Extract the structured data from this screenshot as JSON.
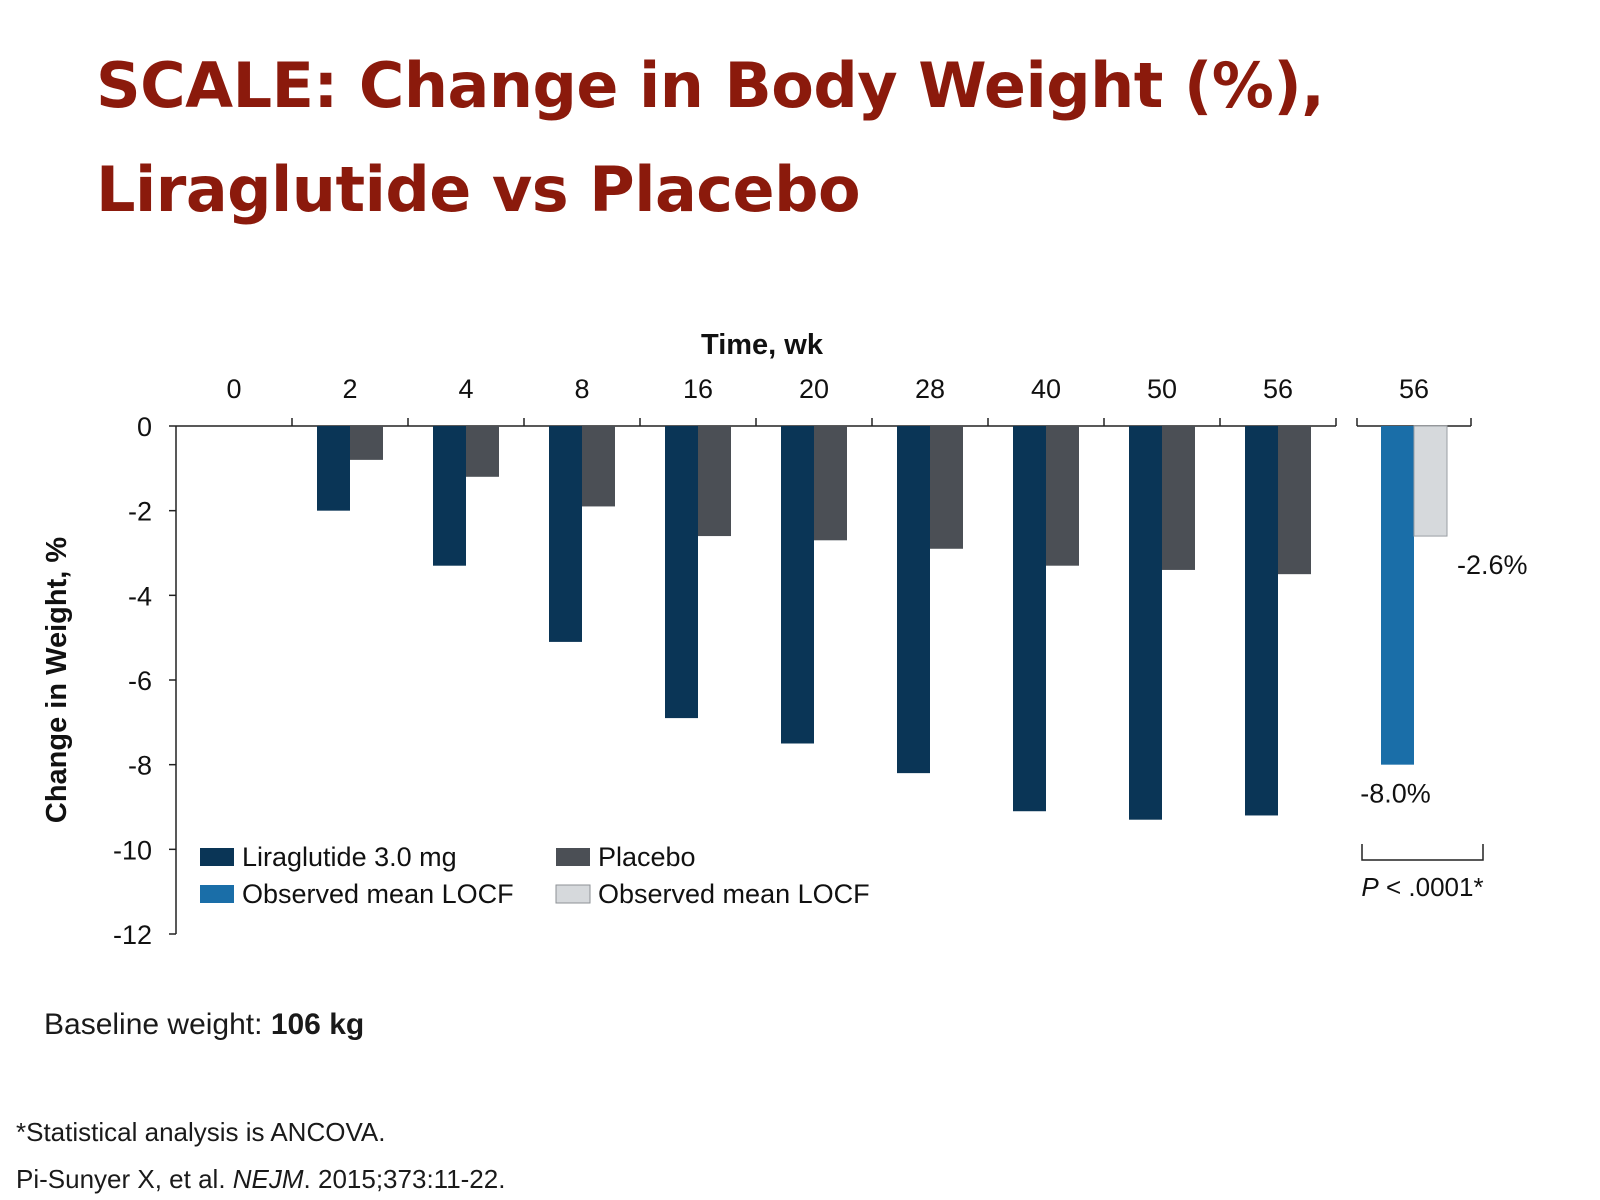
{
  "title": {
    "line1": "SCALE: Change in Body Weight (%),",
    "line2": "Liraglutide vs Placebo"
  },
  "chart_data": {
    "type": "bar",
    "xlabel": "Time, wk",
    "ylabel": "Change in Weight, %",
    "ylim": [
      -12,
      0
    ],
    "yticks": [
      0,
      -2,
      -4,
      -6,
      -8,
      -10,
      -12
    ],
    "categories": [
      "0",
      "2",
      "4",
      "8",
      "16",
      "20",
      "28",
      "40",
      "50",
      "56"
    ],
    "series": [
      {
        "name": "Liraglutide 3.0 mg",
        "color": "#0a3556",
        "values": [
          0,
          -2.0,
          -3.3,
          -5.1,
          -6.9,
          -7.5,
          -8.2,
          -9.1,
          -9.3,
          -9.2
        ]
      },
      {
        "name": "Placebo",
        "color": "#4b4f55",
        "values": [
          0,
          -0.8,
          -1.2,
          -1.9,
          -2.6,
          -2.7,
          -2.9,
          -3.3,
          -3.4,
          -3.5
        ]
      }
    ],
    "locf": {
      "category": "56",
      "series": [
        {
          "name": "Observed mean LOCF",
          "color": "#1a6ea8",
          "value": -8.0,
          "label": "-8.0%"
        },
        {
          "name": "Observed mean LOCF",
          "color": "#d6d9dc",
          "value": -2.6,
          "label": "-2.6%"
        }
      ],
      "p_value": {
        "italic": "P",
        "text": " < .0001*"
      }
    },
    "legend_position": "bottom-left"
  },
  "notes": {
    "baseline_label": "Baseline weight: ",
    "baseline_value": "106 kg",
    "footnote": "*Statistical analysis is ANCOVA.",
    "citation_authors": "Pi-Sunyer X, et al. ",
    "citation_journal": "NEJM",
    "citation_rest": ". 2015;373:11-22."
  }
}
